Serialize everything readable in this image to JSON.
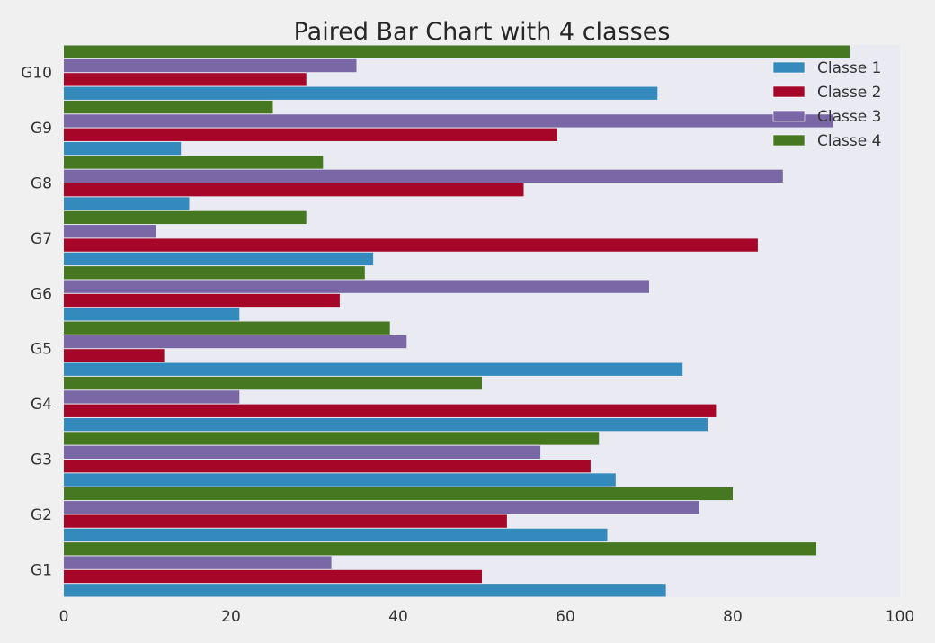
{
  "chart_data": {
    "type": "bar",
    "orientation": "horizontal",
    "title": "Paired Bar Chart with 4 classes",
    "xlabel": "",
    "ylabel": "",
    "xlim": [
      0,
      100
    ],
    "x_ticks": [
      "0",
      "20",
      "40",
      "60",
      "80",
      "100"
    ],
    "categories": [
      "G1",
      "G2",
      "G3",
      "G4",
      "G5",
      "G6",
      "G7",
      "G8",
      "G9",
      "G10"
    ],
    "series": [
      {
        "name": "Classe 1",
        "color": "#348abd",
        "values": [
          72,
          65,
          66,
          77,
          74,
          21,
          37,
          15,
          14,
          71
        ]
      },
      {
        "name": "Classe 2",
        "color": "#a60628",
        "values": [
          50,
          53,
          63,
          78,
          12,
          33,
          83,
          55,
          59,
          29
        ]
      },
      {
        "name": "Classe 3",
        "color": "#7a68a6",
        "values": [
          32,
          76,
          57,
          21,
          41,
          70,
          11,
          86,
          92,
          35
        ]
      },
      {
        "name": "Classe 4",
        "color": "#467821",
        "values": [
          90,
          80,
          64,
          50,
          39,
          36,
          29,
          31,
          25,
          94
        ]
      }
    ],
    "grid": false,
    "legend_position": "top-right",
    "plot_background": "#eaeaf2"
  }
}
